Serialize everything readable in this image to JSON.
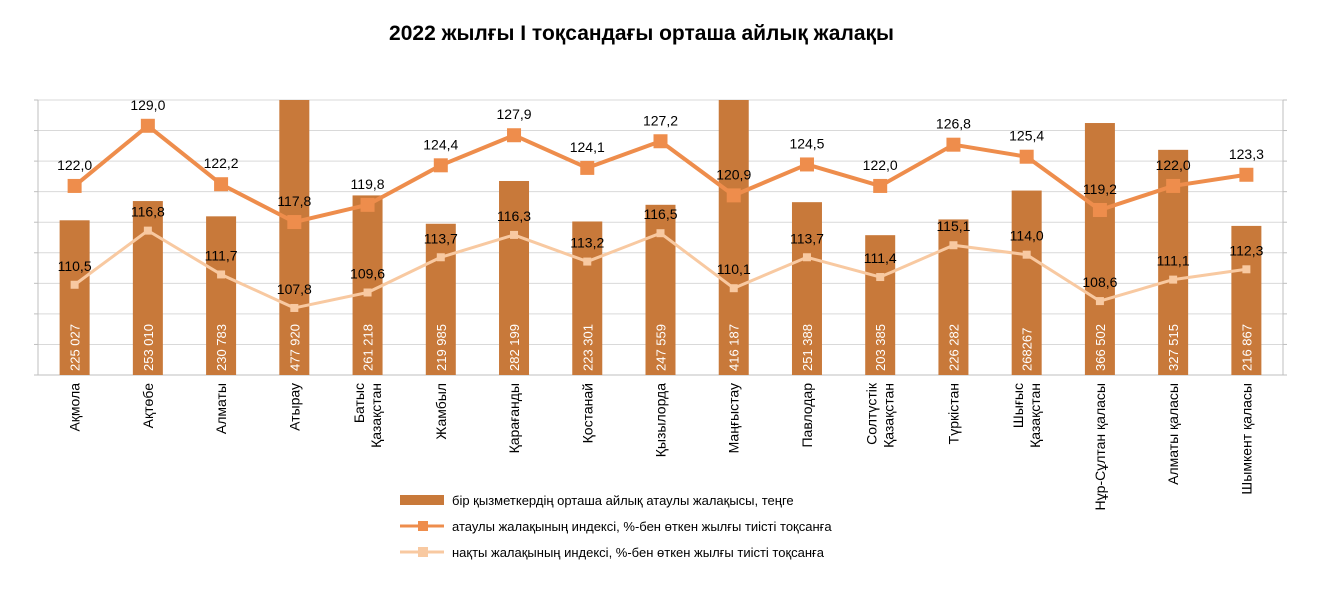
{
  "chart_data": {
    "type": "bar",
    "title": "2022 жылғы І тоқсандағы орташа айлық жалақы",
    "categories": [
      "Ақмола",
      "Ақтөбе",
      "Алматы",
      "Атырау",
      "Батыс\nҚазақстан",
      "Жамбыл",
      "Қарағанды",
      "Қостанай",
      "Қызылорда",
      "Маңғыстау",
      "Павлодар",
      "Солтүстік\nҚазақстан",
      "Түркістан",
      "Шығыс\nҚазақстан",
      "Нұр-Сұлтан қаласы",
      "Алматы қаласы",
      "Шымкент қаласы"
    ],
    "series": [
      {
        "name": "бір қызметкердің орташа айлық атаулы жалақысы, теңге",
        "type": "bar",
        "axis": "left",
        "values": [
          225027,
          253010,
          230783,
          477920,
          261218,
          219985,
          282199,
          223301,
          247559,
          416187,
          251388,
          203385,
          226282,
          268267,
          366502,
          327515,
          216867
        ],
        "value_labels": [
          "225 027",
          "253 010",
          "230 783",
          "477 920",
          "261 218",
          "219 985",
          "282 199",
          "223 301",
          "247 559",
          "416 187",
          "251 388",
          "203 385",
          "226 282",
          "268267",
          "366 502",
          "327 515",
          "216 867"
        ],
        "color": "#c8793a"
      },
      {
        "name": "атаулы жалақының индексі, %-бен өткен жылғы тиісті тоқсанға",
        "type": "line",
        "axis": "right",
        "values": [
          122.0,
          129.0,
          122.2,
          117.8,
          119.8,
          124.4,
          127.9,
          124.1,
          127.2,
          120.9,
          124.5,
          122.0,
          126.8,
          125.4,
          119.2,
          122.0,
          123.3
        ],
        "value_labels": [
          "122,0",
          "129,0",
          "122,2",
          "117,8",
          "119,8",
          "124,4",
          "127,9",
          "124,1",
          "127,2",
          "120,9",
          "124,5",
          "122,0",
          "126,8",
          "125,4",
          "119,2",
          "122,0",
          "123,3"
        ],
        "color": "#ee8d4c"
      },
      {
        "name": "нақты жалақының индексі, %-бен өткен жылғы тиісті тоқсанға",
        "type": "line",
        "axis": "right",
        "values": [
          110.5,
          116.8,
          111.7,
          107.8,
          109.6,
          113.7,
          116.3,
          113.2,
          116.5,
          110.1,
          113.7,
          111.4,
          115.1,
          114.0,
          108.6,
          111.1,
          112.3
        ],
        "value_labels": [
          "110,5",
          "116,8",
          "111,7",
          "107,8",
          "109,6",
          "113,7",
          "116,3",
          "113,2",
          "116,5",
          "110,1",
          "113,7",
          "111,4",
          "115,1",
          "114,0",
          "108,6",
          "111,1",
          "112,3"
        ],
        "color": "#f8c9a1"
      }
    ],
    "ylim_left": [
      0,
      400000
    ],
    "ylim_right": [
      100,
      132
    ],
    "grid": true,
    "legend_position": "bottom-center"
  }
}
